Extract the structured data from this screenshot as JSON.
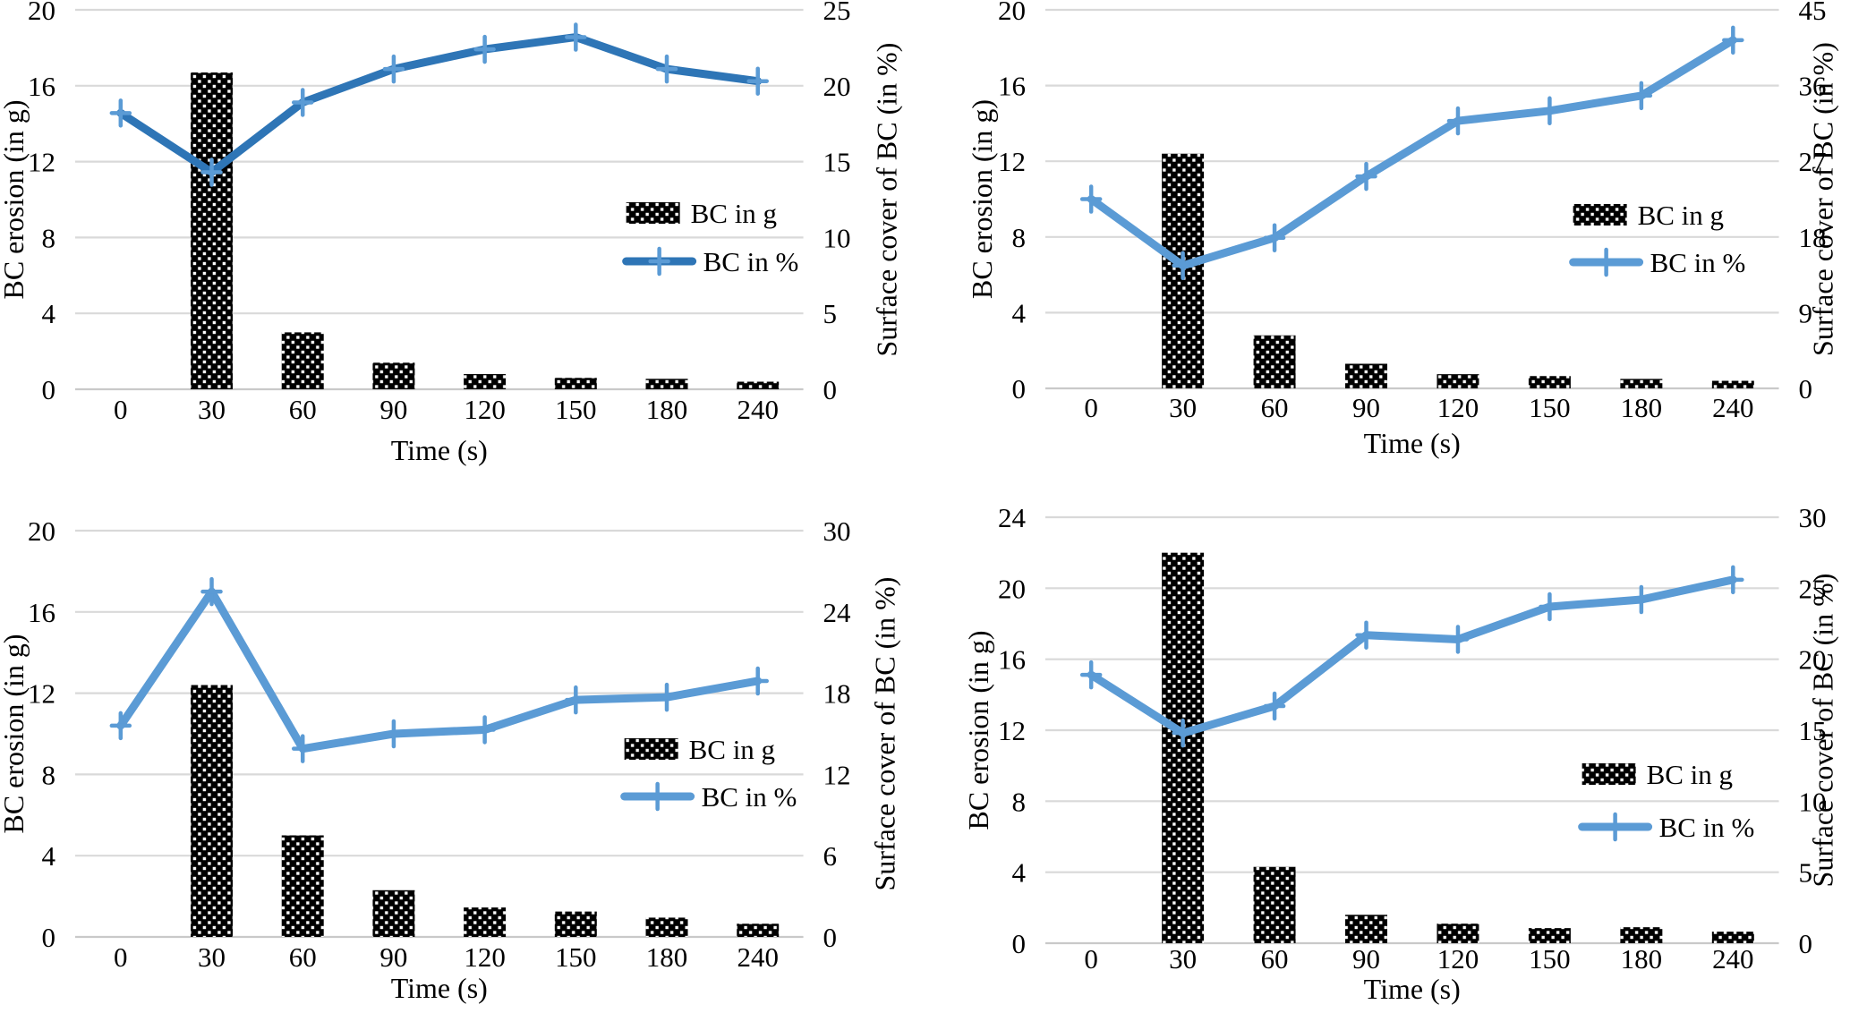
{
  "page": {
    "background": "#FFFFFF"
  },
  "colors": {
    "text": "#000000",
    "gridline": "#D9D9D9",
    "axis_line": "#C9C9C9",
    "bar_fill": "#000000",
    "bar_dot": "#FFFFFF",
    "line_blue_dark": "#2E75B6",
    "line_blue_light": "#5B9BD5"
  },
  "chart_data": [
    {
      "position": "top-left",
      "type": "combo",
      "categories": [
        "0",
        "30",
        "60",
        "90",
        "120",
        "150",
        "180",
        "240"
      ],
      "xlabel": "Time (s)",
      "grid": "horizontal",
      "left_axis": {
        "label": "BC erosion (in g)",
        "min": 0,
        "max": 20,
        "ticks": [
          0,
          4,
          8,
          12,
          16,
          20
        ]
      },
      "right_axis": {
        "label": "Surface cover of BC (in %)",
        "min": 0,
        "max": 25,
        "ticks": [
          0,
          5,
          10,
          15,
          20,
          25
        ]
      },
      "legend": {
        "labels": [
          "BC in g",
          "BC in %"
        ],
        "location": "center-right"
      },
      "series": [
        {
          "name": "BC in g",
          "type": "bar",
          "axis": "left",
          "color": "#000000",
          "pattern": "white-dots",
          "values": [
            0,
            16.7,
            3.0,
            1.4,
            0.8,
            0.6,
            0.55,
            0.4
          ]
        },
        {
          "name": "BC in %",
          "type": "line",
          "axis": "right",
          "color": "#2E75B6",
          "marker": "plus",
          "marker_color": "#5B9BD5",
          "values": [
            18.2,
            14.3,
            18.9,
            21.1,
            22.4,
            23.2,
            21.1,
            20.3
          ]
        }
      ]
    },
    {
      "position": "top-right",
      "type": "combo",
      "categories": [
        "0",
        "30",
        "60",
        "90",
        "120",
        "150",
        "180",
        "240"
      ],
      "xlabel": "Time (s)",
      "grid": "horizontal",
      "left_axis": {
        "label": "BC erosion (in g)",
        "min": 0,
        "max": 20,
        "ticks": [
          0,
          4,
          8,
          12,
          16,
          20
        ]
      },
      "right_axis": {
        "label": "Surface cover of BC (in %)",
        "min": 0,
        "max": 45,
        "ticks": [
          0,
          9,
          18,
          27,
          36,
          45
        ]
      },
      "legend": {
        "labels": [
          "BC in g",
          "BC in %"
        ],
        "location": "center-right"
      },
      "series": [
        {
          "name": "BC in g",
          "type": "bar",
          "axis": "left",
          "color": "#000000",
          "pattern": "white-dots",
          "values": [
            0,
            12.4,
            2.8,
            1.3,
            0.75,
            0.65,
            0.5,
            0.4
          ]
        },
        {
          "name": "BC in %",
          "type": "line",
          "axis": "right",
          "color": "#5B9BD5",
          "marker": "plus",
          "marker_color": "#5B9BD5",
          "values": [
            22.5,
            14.6,
            17.9,
            25.2,
            31.8,
            33.0,
            34.8,
            41.4
          ]
        }
      ]
    },
    {
      "position": "bottom-left",
      "type": "combo",
      "categories": [
        "0",
        "30",
        "60",
        "90",
        "120",
        "150",
        "180",
        "240"
      ],
      "xlabel": "Time (s)",
      "grid": "horizontal",
      "left_axis": {
        "label": "BC erosion (in g)",
        "min": 0,
        "max": 20,
        "ticks": [
          0,
          4,
          8,
          12,
          16,
          20
        ]
      },
      "right_axis": {
        "label": "Surface cover of BC (in %)",
        "min": 0,
        "max": 30,
        "ticks": [
          0,
          6,
          12,
          18,
          24,
          30
        ]
      },
      "legend": {
        "labels": [
          "BC in g",
          "BC in %"
        ],
        "location": "center-right"
      },
      "series": [
        {
          "name": "BC in g",
          "type": "bar",
          "axis": "left",
          "color": "#000000",
          "pattern": "white-dots",
          "values": [
            0,
            12.4,
            5.0,
            2.3,
            1.45,
            1.25,
            0.95,
            0.65
          ]
        },
        {
          "name": "BC in %",
          "type": "line",
          "axis": "right",
          "color": "#5B9BD5",
          "marker": "plus",
          "marker_color": "#5B9BD5",
          "values": [
            15.6,
            25.5,
            13.9,
            15.0,
            15.3,
            17.5,
            17.7,
            18.9
          ]
        }
      ]
    },
    {
      "position": "bottom-right",
      "type": "combo",
      "categories": [
        "0",
        "30",
        "60",
        "90",
        "120",
        "150",
        "180",
        "240"
      ],
      "xlabel": "Time (s)",
      "grid": "horizontal",
      "left_axis": {
        "label": "BC erosion (in g)",
        "min": 0,
        "max": 24,
        "ticks": [
          0,
          4,
          8,
          12,
          16,
          20,
          24
        ]
      },
      "right_axis": {
        "label": "Surface cover of BC (in %)",
        "min": 0,
        "max": 30,
        "ticks": [
          0,
          5,
          10,
          15,
          20,
          25,
          30
        ]
      },
      "legend": {
        "labels": [
          "BC in g",
          "BC in %"
        ],
        "location": "center-right"
      },
      "series": [
        {
          "name": "BC in g",
          "type": "bar",
          "axis": "left",
          "color": "#000000",
          "pattern": "white-dots",
          "values": [
            0,
            22.0,
            4.3,
            1.6,
            1.1,
            0.85,
            0.9,
            0.65
          ]
        },
        {
          "name": "BC in %",
          "type": "line",
          "axis": "right",
          "color": "#5B9BD5",
          "marker": "plus",
          "marker_color": "#5B9BD5",
          "values": [
            18.9,
            14.8,
            16.7,
            21.7,
            21.4,
            23.7,
            24.2,
            25.6
          ]
        }
      ]
    }
  ]
}
